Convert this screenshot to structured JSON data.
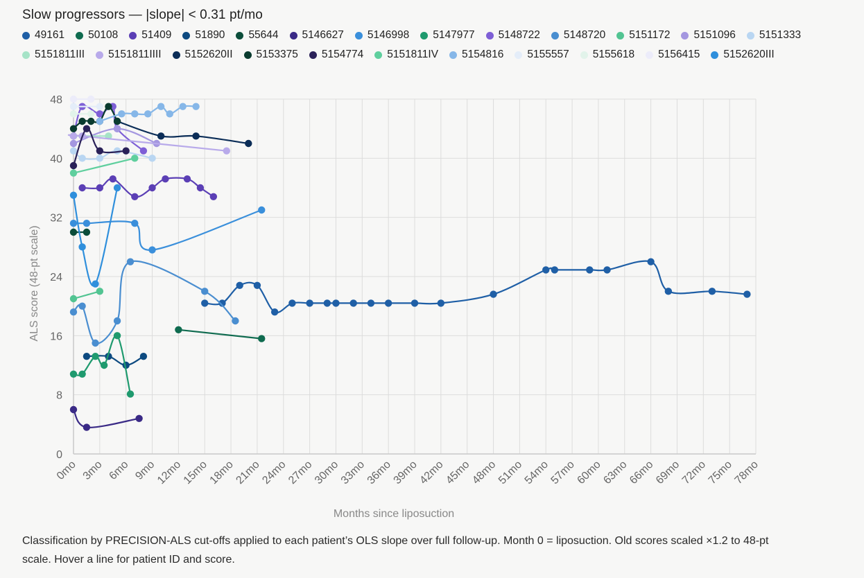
{
  "title": "Slow progressors — |slope| < 0.31 pt/mo",
  "caption": "Classification by PRECISION-ALS cut-offs applied to each patient’s OLS slope over full follow-up. Month 0 = liposuction. Old scores scaled ×1.2 to 48-pt scale. Hover a line for patient ID and score.",
  "chart_data": {
    "type": "line",
    "xlabel": "Months since liposuction",
    "ylabel": "ALS score (48-pt scale)",
    "xlim": [
      0,
      78
    ],
    "ylim": [
      0,
      48
    ],
    "x_ticks": [
      "0mo",
      "3mo",
      "6mo",
      "9mo",
      "12mo",
      "15mo",
      "18mo",
      "21mo",
      "24mo",
      "27mo",
      "30mo",
      "33mo",
      "36mo",
      "39mo",
      "42mo",
      "45mo",
      "48mo",
      "51mo",
      "54mo",
      "57mo",
      "60mo",
      "63mo",
      "66mo",
      "69mo",
      "72mo",
      "75mo",
      "78mo"
    ],
    "y_ticks": [
      "0",
      "8",
      "16",
      "24",
      "32",
      "40",
      "48"
    ],
    "grid": true,
    "legend_position": "top",
    "series": [
      {
        "name": "49161",
        "color": "#1f5fa6",
        "points": [
          [
            15,
            20.4
          ],
          [
            17,
            20.4
          ],
          [
            19,
            22.8
          ],
          [
            21,
            22.8
          ],
          [
            23,
            19.2
          ],
          [
            25,
            20.4
          ],
          [
            27,
            20.4
          ],
          [
            29,
            20.4
          ],
          [
            30,
            20.4
          ],
          [
            32,
            20.4
          ],
          [
            34,
            20.4
          ],
          [
            36,
            20.4
          ],
          [
            39,
            20.4
          ],
          [
            42,
            20.4
          ],
          [
            48,
            21.6
          ],
          [
            54,
            24.9
          ],
          [
            55,
            24.9
          ],
          [
            59,
            24.9
          ],
          [
            61,
            24.9
          ],
          [
            66,
            26
          ],
          [
            68,
            22
          ],
          [
            73,
            22
          ],
          [
            77,
            21.6
          ]
        ]
      },
      {
        "name": "50108",
        "color": "#0f6b4f",
        "points": [
          [
            12,
            16.8
          ],
          [
            21.5,
            15.6
          ]
        ]
      },
      {
        "name": "51409",
        "color": "#5b3fb5",
        "points": [
          [
            1,
            36
          ],
          [
            3,
            36
          ],
          [
            4.5,
            37.2
          ],
          [
            7,
            34.8
          ],
          [
            9,
            36
          ],
          [
            10.5,
            37.2
          ],
          [
            13,
            37.2
          ],
          [
            14.5,
            36
          ],
          [
            16,
            34.8
          ]
        ]
      },
      {
        "name": "51890",
        "color": "#0d4a80",
        "points": [
          [
            1.5,
            13.2
          ],
          [
            4,
            13.2
          ],
          [
            6,
            12
          ],
          [
            8,
            13.2
          ]
        ]
      },
      {
        "name": "55644",
        "color": "#0b4d3a",
        "points": [
          [
            0,
            30
          ],
          [
            1.5,
            30
          ]
        ]
      },
      {
        "name": "5146627",
        "color": "#3a2a86",
        "points": [
          [
            0,
            6
          ],
          [
            1.5,
            3.6
          ],
          [
            7.5,
            4.8
          ]
        ]
      },
      {
        "name": "5146998",
        "color": "#3a8fdb",
        "points": [
          [
            0,
            31.2
          ],
          [
            1.5,
            31.2
          ],
          [
            7,
            31.2
          ],
          [
            9,
            27.6
          ],
          [
            21.5,
            33
          ]
        ]
      },
      {
        "name": "5147977",
        "color": "#1f9a6e",
        "points": [
          [
            0,
            10.8
          ],
          [
            1,
            10.8
          ],
          [
            2.5,
            13.2
          ],
          [
            3.5,
            12
          ],
          [
            5,
            16
          ],
          [
            6.5,
            8.1
          ]
        ]
      },
      {
        "name": "5148722",
        "color": "#7e5fd6",
        "points": [
          [
            0,
            43
          ],
          [
            1,
            47
          ],
          [
            3,
            46
          ],
          [
            4.5,
            47
          ],
          [
            5,
            44
          ],
          [
            8,
            41
          ]
        ]
      },
      {
        "name": "5148720",
        "color": "#4a8ed0",
        "points": [
          [
            0,
            19.2
          ],
          [
            1,
            20
          ],
          [
            2.5,
            15
          ],
          [
            5,
            18
          ],
          [
            6.5,
            26
          ],
          [
            15,
            22
          ],
          [
            18.5,
            18
          ]
        ]
      },
      {
        "name": "5151172",
        "color": "#52c492",
        "points": [
          [
            0,
            21
          ],
          [
            3,
            22
          ]
        ]
      },
      {
        "name": "5151096",
        "color": "#a497e0",
        "points": [
          [
            0,
            42
          ],
          [
            5,
            44
          ],
          [
            9.5,
            42
          ]
        ]
      },
      {
        "name": "5151333",
        "color": "#b9d6f2",
        "points": [
          [
            0,
            41
          ],
          [
            1,
            40
          ],
          [
            3,
            40
          ],
          [
            5,
            41
          ],
          [
            9,
            40
          ]
        ]
      },
      {
        "name": "5151811III",
        "color": "#a6e3c7",
        "points": [
          [
            0,
            43
          ],
          [
            4,
            43
          ]
        ]
      },
      {
        "name": "5151811IIII",
        "color": "#b8aaea",
        "points": [
          [
            0,
            43
          ],
          [
            1,
            43
          ],
          [
            17.5,
            41
          ]
        ]
      },
      {
        "name": "5152620II",
        "color": "#0b2d57",
        "points": [
          [
            5,
            45
          ],
          [
            10,
            43
          ],
          [
            14,
            43
          ],
          [
            20,
            42
          ]
        ]
      },
      {
        "name": "5153375",
        "color": "#0a3b2f",
        "points": [
          [
            0,
            44
          ],
          [
            1,
            45
          ],
          [
            2,
            45
          ],
          [
            3,
            45
          ],
          [
            4,
            47
          ],
          [
            5,
            45
          ]
        ]
      },
      {
        "name": "5154774",
        "color": "#2a2158",
        "points": [
          [
            0,
            39
          ],
          [
            1.5,
            44
          ],
          [
            3,
            41
          ],
          [
            6,
            41
          ]
        ]
      },
      {
        "name": "5151811IV",
        "color": "#5fcf9e",
        "points": [
          [
            0,
            38
          ],
          [
            7,
            40
          ]
        ]
      },
      {
        "name": "5154816",
        "color": "#86b7e8",
        "points": [
          [
            3,
            45
          ],
          [
            5.5,
            46
          ],
          [
            7,
            46
          ],
          [
            8.5,
            46
          ],
          [
            10,
            47
          ],
          [
            11,
            46
          ],
          [
            12.5,
            47
          ],
          [
            14,
            47
          ]
        ]
      },
      {
        "name": "5155557",
        "color": "#e4edf9",
        "points": [
          [
            0,
            47
          ],
          [
            3,
            47
          ]
        ]
      },
      {
        "name": "5155618",
        "color": "#e2f3ea",
        "points": [
          [
            0,
            46
          ],
          [
            2,
            46
          ]
        ]
      },
      {
        "name": "5156415",
        "color": "#ececfa",
        "points": [
          [
            0,
            48
          ],
          [
            2,
            48
          ]
        ]
      },
      {
        "name": "5152620III",
        "color": "#2f8fdc",
        "points": [
          [
            0,
            35
          ],
          [
            1,
            28
          ],
          [
            2.5,
            23
          ],
          [
            5,
            36
          ]
        ]
      }
    ]
  }
}
